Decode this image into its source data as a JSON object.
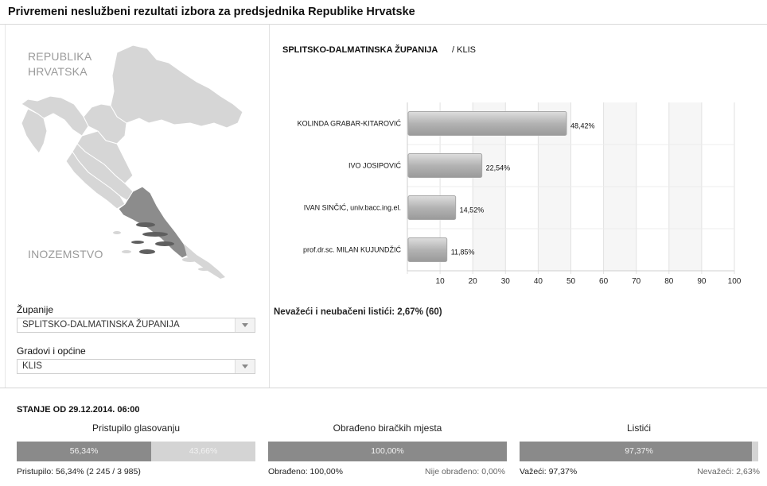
{
  "page": {
    "title": "Privremeni neslužbeni rezultati izbora za predsjednika Republike Hrvatske"
  },
  "map": {
    "label_country_line1": "REPUBLIKA",
    "label_country_line2": "HRVATSKA",
    "label_abroad": "INOZEMSTVO"
  },
  "filters": {
    "zupanije_label": "Županije",
    "zupanije_value": "SPLITSKO-DALMATINSKA ŽUPANIJA",
    "gradovi_label": "Gradovi i općine",
    "gradovi_value": "KLIS"
  },
  "results": {
    "region": "SPLITSKO-DALMATINSKA ŽUPANIJA",
    "municipality": "/ KLIS",
    "invalid_text": "Nevažeći i neubačeni listići: 2,67% (60)"
  },
  "chart_data": {
    "type": "bar",
    "orientation": "horizontal",
    "categories": [
      "KOLINDA GRABAR-KITAROVIĆ",
      "IVO JOSIPOVIĆ",
      "IVAN SINČIĆ, univ.bacc.ing.el.",
      "prof.dr.sc. MILAN KUJUNDŽIĆ"
    ],
    "values": [
      48.42,
      22.54,
      14.52,
      11.85
    ],
    "value_labels": [
      "48,42%",
      "22,54%",
      "14,52%",
      "11,85%"
    ],
    "xlim": [
      0,
      100
    ],
    "xticks": [
      10,
      20,
      30,
      40,
      50,
      60,
      70,
      80,
      90,
      100
    ],
    "grid": true,
    "bar_color": "#b3b3b3"
  },
  "stats": {
    "status_text": "STANJE OD 29.12.2014. 06:00",
    "turnout": {
      "title": "Pristupilo glasovanju",
      "value": 56.34,
      "left_label": "56,34%",
      "right_label": "43,66%",
      "footer": "Pristupilo: 56,34% (2 245 / 3 985)"
    },
    "processed": {
      "title": "Obrađeno biračkih mjesta",
      "value": 100,
      "center_label": "100,00%",
      "footer_left": "Obrađeno: 100,00%",
      "footer_right": "Nije obrađeno: 0,00%"
    },
    "ballots": {
      "title": "Listići",
      "value": 97.37,
      "center_label": "97,37%",
      "footer_left": "Važeći: 97,37%",
      "footer_right": "Nevažeći: 2,63%"
    }
  },
  "colors": {
    "bar_dark": "#8a8a8a",
    "bar_light": "#d4d4d4",
    "map_land": "#d6d6d6",
    "map_selected": "#8c8c8c"
  }
}
